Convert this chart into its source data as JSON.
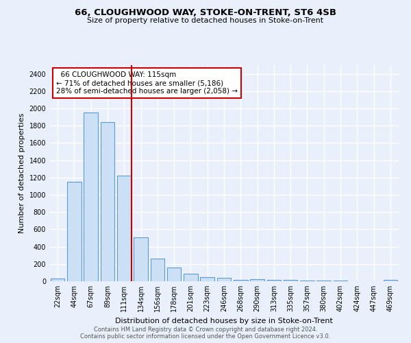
{
  "title1": "66, CLOUGHWOOD WAY, STOKE-ON-TRENT, ST6 4SB",
  "title2": "Size of property relative to detached houses in Stoke-on-Trent",
  "xlabel": "Distribution of detached houses by size in Stoke-on-Trent",
  "ylabel": "Number of detached properties",
  "categories": [
    "22sqm",
    "44sqm",
    "67sqm",
    "89sqm",
    "111sqm",
    "134sqm",
    "156sqm",
    "178sqm",
    "201sqm",
    "223sqm",
    "246sqm",
    "268sqm",
    "290sqm",
    "313sqm",
    "335sqm",
    "357sqm",
    "380sqm",
    "402sqm",
    "424sqm",
    "447sqm",
    "469sqm"
  ],
  "values": [
    30,
    1150,
    1950,
    1840,
    1220,
    510,
    265,
    155,
    85,
    45,
    38,
    15,
    25,
    18,
    15,
    10,
    8,
    5,
    3,
    2,
    18
  ],
  "bar_color": "#cce0f5",
  "bar_edge_color": "#5b9bd5",
  "red_line_index": 4,
  "annotation_line1": "66 CLOUGHWOOD WAY: 115sqm",
  "annotation_line2": "← 71% of detached houses are smaller (5,186)",
  "annotation_line3": "28% of semi-detached houses are larger (2,058) →",
  "red_line_color": "#cc0000",
  "annotation_box_color": "#ffffff",
  "annotation_box_edge": "#cc0000",
  "background_color": "#eaf0fb",
  "grid_color": "#ffffff",
  "footer1": "Contains HM Land Registry data © Crown copyright and database right 2024.",
  "footer2": "Contains public sector information licensed under the Open Government Licence v3.0.",
  "ylim": [
    0,
    2500
  ],
  "yticks": [
    0,
    200,
    400,
    600,
    800,
    1000,
    1200,
    1400,
    1600,
    1800,
    2000,
    2200,
    2400
  ]
}
